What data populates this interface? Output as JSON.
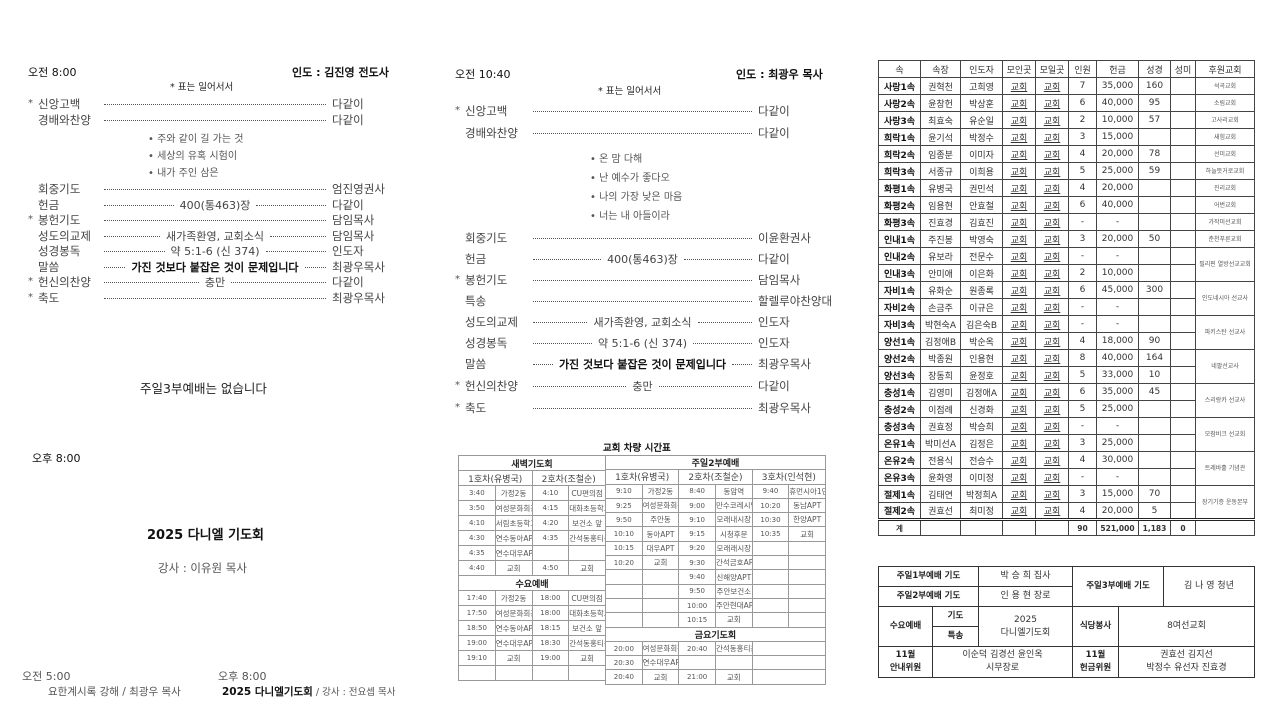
{
  "first_service": {
    "time": "오전  8:00",
    "leader": "인도 : 김진영 전도사",
    "note": "* 표는   일어서서",
    "order": [
      {
        "star": "*",
        "label": "신앙고백",
        "mid": "",
        "person": "다같이"
      },
      {
        "star": "",
        "label": "경배와찬양",
        "mid": "",
        "person": "다같이"
      },
      {
        "star": "",
        "label": "회중기도",
        "mid": "",
        "person": "엄진영권사"
      },
      {
        "star": "",
        "label": "헌금",
        "mid": "400(통463)장",
        "person": "다같이"
      },
      {
        "star": "*",
        "label": "봉헌기도",
        "mid": "",
        "person": "담임목사"
      },
      {
        "star": "",
        "label": "성도의교제",
        "mid": "새가족환영, 교회소식",
        "person": "담임목사"
      },
      {
        "star": "",
        "label": "성경봉독",
        "mid": "약 5:1-6 (신 374)",
        "person": "인도자"
      },
      {
        "star": "",
        "label": "말씀",
        "mid": "가진 것보다 붙잡은 것이 문제입니다",
        "person": "최광우목사",
        "bold": true
      },
      {
        "star": "*",
        "label": "헌신의찬양",
        "mid": "충만",
        "person": "다같이"
      },
      {
        "star": "*",
        "label": "축도",
        "mid": "",
        "person": "최광우목사"
      }
    ],
    "hymns": [
      "• 주와 같이 길 가는 것",
      "• 세상의 유혹 시험이",
      "• 내가 주인 삼은"
    ]
  },
  "third_service_note": "주일3부예배는 없습니다",
  "evening": {
    "time": "오후  8:00",
    "title": "2025  다니엘  기도회",
    "speaker": "강사  :  이유원  목사"
  },
  "weekday": {
    "dawn_time": "오전  5:00",
    "dawn_text": "요한계시록 강해  /  최광우  목사",
    "eve_time": "오후  8:00",
    "eve_title": "2025  다니엘기도회",
    "eve_speaker": " / 강사 : 전요셉 목사"
  },
  "second_service": {
    "time": "오전 10:40",
    "leader": "인도 : 최광우  목사",
    "note": "* 표는   일어서서",
    "order": [
      {
        "star": "*",
        "label": "신앙고백",
        "mid": "",
        "person": "다같이"
      },
      {
        "star": "",
        "label": "경배와찬양",
        "mid": "",
        "person": "다같이"
      },
      {
        "star": "",
        "label": "회중기도",
        "mid": "",
        "person": "이윤환권사"
      },
      {
        "star": "",
        "label": "헌금",
        "mid": "400(통463)장",
        "person": "다같이"
      },
      {
        "star": "*",
        "label": "봉헌기도",
        "mid": "",
        "person": "담임목사"
      },
      {
        "star": "",
        "label": "특송",
        "mid": "",
        "person": "할렐루야찬양대"
      },
      {
        "star": "",
        "label": "성도의교제",
        "mid": "새가족환영, 교회소식",
        "person": "인도자"
      },
      {
        "star": "",
        "label": "성경봉독",
        "mid": "약 5:1-6 (신 374)",
        "person": "인도자"
      },
      {
        "star": "",
        "label": "말씀",
        "mid": "가진 것보다 붙잡은 것이 문제입니다",
        "person": "최광우목사",
        "bold": true
      },
      {
        "star": "*",
        "label": "헌신의찬양",
        "mid": "충만",
        "person": "다같이"
      },
      {
        "star": "*",
        "label": "축도",
        "mid": "",
        "person": "최광우목사"
      }
    ],
    "hymns": [
      "• 온 맘 다해",
      "• 난 예수가 좋다오",
      "• 나의 가장 낮은 마음",
      "• 너는 내 아들이라"
    ]
  },
  "bus": {
    "title": "교회  차량  시간표",
    "dawn": {
      "title": "새벽기도회",
      "buses": [
        "1호차(유병국)",
        "2호차(조철순)"
      ],
      "rows": [
        [
          "3:40",
          "가정2동",
          "4:10",
          "CU편의점"
        ],
        [
          "3:50",
          "여성문화회관",
          "4:15",
          "대화초등학교"
        ],
        [
          "4:10",
          "서림초등학교",
          "4:20",
          "보건소 앞"
        ],
        [
          "4:30",
          "연수동아APT",
          "4:35",
          "간석동홍티운"
        ],
        [
          "4:35",
          "연수대우APT",
          "",
          ""
        ],
        [
          "4:40",
          "교회",
          "4:50",
          "교회"
        ]
      ]
    },
    "wed": {
      "title": "수요예배",
      "rows": [
        [
          "17:40",
          "가정2동",
          "18:00",
          "CU편의점"
        ],
        [
          "17:50",
          "여성문화회관",
          "18:00",
          "대화초등학교"
        ],
        [
          "18:50",
          "연수동아APT",
          "18:15",
          "보건소 앞"
        ],
        [
          "19:00",
          "연수대우APT",
          "18:30",
          "간석동홍티운"
        ],
        [
          "19:10",
          "교회",
          "19:00",
          "교회"
        ],
        [
          "",
          "",
          "",
          ""
        ]
      ]
    },
    "sunday": {
      "title": "주일2부예배",
      "buses": [
        "1호차(유병국)",
        "2호차(조철순)",
        "3호차(인석현)"
      ],
      "rows": [
        [
          "9:10",
          "가정2동",
          "8:40",
          "동암역",
          "9:40",
          "휴먼시아1단지"
        ],
        [
          "9:25",
          "여성문화회관",
          "9:00",
          "만수코레시안",
          "10:20",
          "동남APT"
        ],
        [
          "9:50",
          "주안동",
          "9:10",
          "모래내시장",
          "10:30",
          "한양APT"
        ],
        [
          "10:10",
          "동아APT",
          "9:15",
          "시청후문",
          "10:35",
          "교회"
        ],
        [
          "10:15",
          "대우APT",
          "9:20",
          "모래래시장",
          "",
          ""
        ],
        [
          "10:20",
          "교회",
          "9:30",
          "간석금호APT",
          "",
          ""
        ],
        [
          "",
          "",
          "9:40",
          "신해양APT",
          "",
          ""
        ],
        [
          "",
          "",
          "9:50",
          "주안보건소",
          "",
          ""
        ],
        [
          "",
          "",
          "10:00",
          "주안현대APT",
          "",
          ""
        ],
        [
          "",
          "",
          "10:15",
          "교회",
          "",
          ""
        ]
      ]
    },
    "fri": {
      "title": "금요기도회",
      "rows": [
        [
          "20:00",
          "여성문화회관",
          "20:40",
          "간석동홍티운"
        ],
        [
          "20:30",
          "연수대우APT",
          "",
          ""
        ],
        [
          "20:40",
          "교회",
          "21:00",
          "교회"
        ]
      ]
    }
  },
  "attendance": {
    "headers": [
      "속",
      "속장",
      "인도자",
      "모인곳",
      "모일곳",
      "인원",
      "헌금",
      "성경",
      "성미",
      "후원교회"
    ],
    "rows": [
      [
        "사랑1속",
        "권혁천",
        "고희영",
        "교회",
        "교회",
        "7",
        "35,000",
        "160",
        ""
      ],
      [
        "사랑2속",
        "윤창헌",
        "박상훈",
        "교회",
        "교회",
        "6",
        "40,000",
        "95",
        ""
      ],
      [
        "사랑3속",
        "최효숙",
        "유순일",
        "교회",
        "교회",
        "2",
        "10,000",
        "57",
        ""
      ],
      [
        "희락1속",
        "윤기석",
        "박정수",
        "교회",
        "교회",
        "3",
        "15,000",
        "",
        ""
      ],
      [
        "희락2속",
        "임종분",
        "이미자",
        "교회",
        "교회",
        "4",
        "20,000",
        "78",
        ""
      ],
      [
        "희락3속",
        "서종규",
        "이희용",
        "교회",
        "교회",
        "5",
        "25,000",
        "59",
        ""
      ],
      [
        "화평1속",
        "유병국",
        "권민석",
        "교회",
        "교회",
        "4",
        "20,000",
        "",
        ""
      ],
      [
        "화평2속",
        "임용현",
        "안효철",
        "교회",
        "교회",
        "6",
        "40,000",
        "",
        ""
      ],
      [
        "화평3속",
        "진효경",
        "김효진",
        "교회",
        "교회",
        "-",
        "-",
        "",
        ""
      ],
      [
        "인내1속",
        "주진봉",
        "박영숙",
        "교회",
        "교회",
        "3",
        "20,000",
        "50",
        ""
      ],
      [
        "인내2속",
        "유보라",
        "전문수",
        "교회",
        "교회",
        "-",
        "-",
        "",
        ""
      ],
      [
        "인내3속",
        "안미애",
        "이은화",
        "교회",
        "교회",
        "2",
        "10,000",
        "",
        ""
      ],
      [
        "자비1속",
        "유화순",
        "원종록",
        "교회",
        "교회",
        "6",
        "45,000",
        "300",
        ""
      ],
      [
        "자비2속",
        "손금주",
        "이규은",
        "교회",
        "교회",
        "-",
        "-",
        "",
        ""
      ],
      [
        "자비3속",
        "박현숙A",
        "김은숙B",
        "교회",
        "교회",
        "-",
        "-",
        "",
        ""
      ],
      [
        "양선1속",
        "김정애B",
        "박순옥",
        "교회",
        "교회",
        "4",
        "18,000",
        "90",
        ""
      ],
      [
        "양선2속",
        "박종원",
        "인용현",
        "교회",
        "교회",
        "8",
        "40,000",
        "164",
        ""
      ],
      [
        "양선3속",
        "장동희",
        "윤정호",
        "교회",
        "교회",
        "5",
        "33,000",
        "10",
        ""
      ],
      [
        "충성1속",
        "김영미",
        "김정애A",
        "교회",
        "교회",
        "6",
        "35,000",
        "45",
        ""
      ],
      [
        "충성2속",
        "이점례",
        "신경화",
        "교회",
        "교회",
        "5",
        "25,000",
        "",
        ""
      ],
      [
        "충성3속",
        "권효정",
        "박승희",
        "교회",
        "교회",
        "-",
        "-",
        "",
        ""
      ],
      [
        "온유1속",
        "박미선A",
        "김정은",
        "교회",
        "교회",
        "3",
        "25,000",
        "",
        ""
      ],
      [
        "온유2속",
        "전용식",
        "전승수",
        "교회",
        "교회",
        "4",
        "30,000",
        "",
        ""
      ],
      [
        "온유3속",
        "윤화영",
        "이미정",
        "교회",
        "교회",
        "-",
        "-",
        "",
        ""
      ],
      [
        "절제1속",
        "김태연",
        "박정희A",
        "교회",
        "교회",
        "3",
        "15,000",
        "70",
        ""
      ],
      [
        "절제2속",
        "권효선",
        "최미정",
        "교회",
        "교회",
        "4",
        "20,000",
        "5",
        ""
      ]
    ],
    "sponsors": [
      {
        "name": "석곡교회",
        "span": 1
      },
      {
        "name": "소림교회",
        "span": 1
      },
      {
        "name": "고사리교회",
        "span": 1
      },
      {
        "name": "새힘교회",
        "span": 1
      },
      {
        "name": "선미교회",
        "span": 1
      },
      {
        "name": "하늘뜻거로교회",
        "span": 1
      },
      {
        "name": "진리교회",
        "span": 1
      },
      {
        "name": "어번교회",
        "span": 1
      },
      {
        "name": "가작미선교회",
        "span": 1
      },
      {
        "name": "춘천푸른교회",
        "span": 1
      },
      {
        "name": "필리핀 열방선교교회",
        "span": 2
      },
      {
        "name": "인도네시아 선교사",
        "span": 2
      },
      {
        "name": "파키스탄 선교사",
        "span": 2
      },
      {
        "name": "네팔선교사",
        "span": 2
      },
      {
        "name": "스리랑카 선교사",
        "span": 2
      },
      {
        "name": "모잠비크 선교회",
        "span": 2
      },
      {
        "name": "트레바훌 기념관",
        "span": 2
      },
      {
        "name": "장기기증 운동본부",
        "span": 2
      }
    ],
    "total": {
      "label": "계",
      "people": "90",
      "offering": "521,000",
      "bible": "1,183",
      "rice": "0"
    }
  },
  "duties": {
    "s1_label": "주일1부예배 기도",
    "s1_name": "박 승 희 집사",
    "s2_label": "주일2부예배 기도",
    "s2_name": "인 용 현 장로",
    "s3_label": "주일3부예배 기도",
    "s3_name": "김 나 영 청년",
    "wed_label": "수요예배",
    "wed_prayer": "기도",
    "wed_song": "특송",
    "wed_value": "2025\n다니엘기도회",
    "kitchen_label": "식당봉사",
    "kitchen_value": "8여선교회",
    "usher_label": "11월\n안내위원",
    "usher_value": "이순덕 김경선 윤인옥\n시무장로",
    "offer_label": "11월\n헌금위원",
    "offer_value": "권효선 김지선\n박정수 유선자 진효경"
  }
}
